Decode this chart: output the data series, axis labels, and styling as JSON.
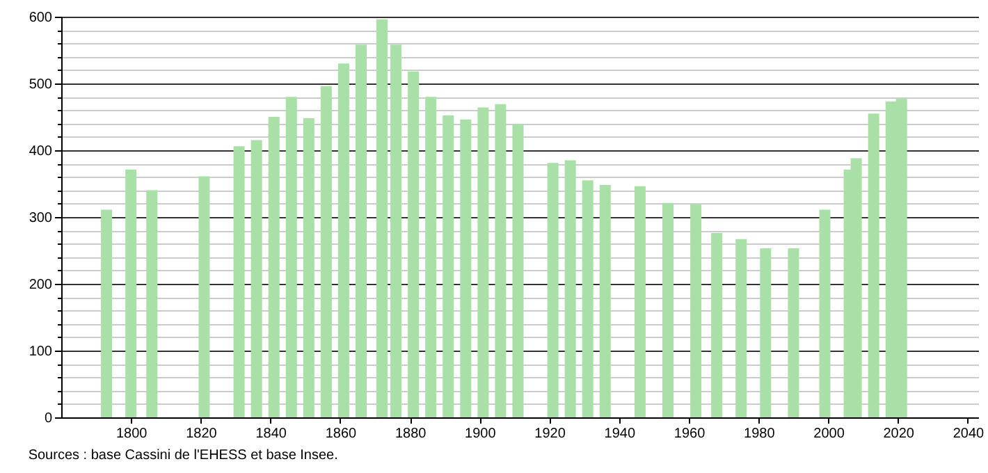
{
  "chart_data": {
    "type": "bar",
    "color": "#a8e0a8",
    "x": [
      1793,
      1800,
      1806,
      1821,
      1831,
      1836,
      1841,
      1846,
      1851,
      1856,
      1861,
      1866,
      1872,
      1876,
      1881,
      1886,
      1891,
      1896,
      1901,
      1906,
      1911,
      1921,
      1926,
      1931,
      1936,
      1946,
      1954,
      1962,
      1968,
      1975,
      1982,
      1990,
      1999,
      2006,
      2008,
      2013,
      2018,
      2021
    ],
    "values": [
      311,
      371,
      340,
      361,
      406,
      415,
      450,
      480,
      448,
      496,
      530,
      558,
      596,
      558,
      518,
      480,
      452,
      446,
      464,
      469,
      439,
      381,
      385,
      355,
      348,
      346,
      321,
      319,
      276,
      267,
      253,
      253,
      311,
      371,
      388,
      455,
      473,
      477
    ],
    "xlim": [
      1780,
      2043
    ],
    "xticks": [
      1800,
      1820,
      1840,
      1860,
      1880,
      1900,
      1920,
      1940,
      1960,
      1980,
      2000,
      2020,
      2040
    ],
    "ylim": [
      0,
      600
    ],
    "yticks": [
      0,
      {
        "value": 20,
        "label": null
      },
      {
        "value": 40,
        "label": null
      },
      {
        "value": 60,
        "label": null
      },
      {
        "value": 80,
        "label": null
      },
      100,
      {
        "value": 120,
        "label": null
      },
      {
        "value": 140,
        "label": null
      },
      {
        "value": 160,
        "label": null
      },
      {
        "value": 180,
        "label": null
      },
      200,
      {
        "value": 220,
        "label": null
      },
      {
        "value": 240,
        "label": null
      },
      {
        "value": 260,
        "label": null
      },
      {
        "value": 280,
        "label": null
      },
      300,
      {
        "value": 320,
        "label": null
      },
      {
        "value": 340,
        "label": null
      },
      {
        "value": 360,
        "label": null
      },
      {
        "value": 380,
        "label": null
      },
      400,
      {
        "value": 420,
        "label": null
      },
      {
        "value": 440,
        "label": null
      },
      {
        "value": 460,
        "label": null
      },
      {
        "value": 480,
        "label": null
      },
      500,
      {
        "value": 520,
        "label": null
      },
      {
        "value": 540,
        "label": null
      },
      {
        "value": 560,
        "label": null
      },
      {
        "value": 580,
        "label": null
      },
      600
    ],
    "grid": "y",
    "annotations": [
      "Sources : base Cassini de l'EHESS et base Insee."
    ]
  }
}
